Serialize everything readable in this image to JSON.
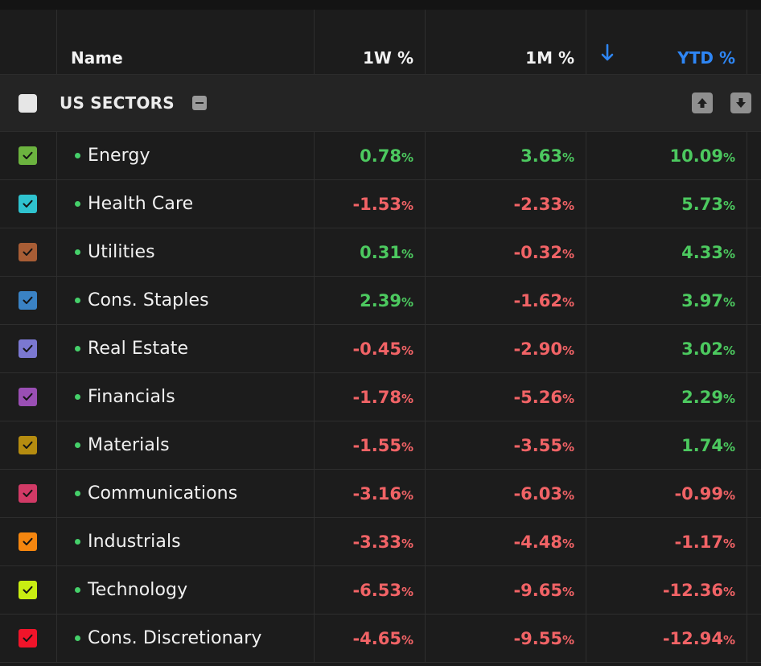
{
  "header": {
    "name": "Name",
    "w1": "1W %",
    "m1": "1M %",
    "ytd": "YTD %",
    "sort_icon": "sort-descending-arrow-icon"
  },
  "group": {
    "title": "US SECTORS",
    "collapse_icon": "minus-icon",
    "move_up_icon": "arrow-up-icon",
    "move_down_icon": "arrow-down-icon"
  },
  "colors": {
    "positive": "#4cc95f",
    "negative": "#f16366",
    "accent": "#2e86f5"
  },
  "rows": [
    {
      "name": "Energy",
      "color": "#6cb33f",
      "checked": true,
      "w1": "0.78",
      "m1": "3.63",
      "ytd": "10.09"
    },
    {
      "name": "Health Care",
      "color": "#2fc3cf",
      "checked": true,
      "w1": "-1.53",
      "m1": "-2.33",
      "ytd": "5.73"
    },
    {
      "name": "Utilities",
      "color": "#a85d35",
      "checked": true,
      "w1": "0.31",
      "m1": "-0.32",
      "ytd": "4.33"
    },
    {
      "name": "Cons. Staples",
      "color": "#3a82c4",
      "checked": true,
      "w1": "2.39",
      "m1": "-1.62",
      "ytd": "3.97"
    },
    {
      "name": "Real Estate",
      "color": "#7b78d1",
      "checked": true,
      "w1": "-0.45",
      "m1": "-2.90",
      "ytd": "3.02"
    },
    {
      "name": "Financials",
      "color": "#9a4fb4",
      "checked": true,
      "w1": "-1.78",
      "m1": "-5.26",
      "ytd": "2.29"
    },
    {
      "name": "Materials",
      "color": "#b58c10",
      "checked": true,
      "w1": "-1.55",
      "m1": "-3.55",
      "ytd": "1.74"
    },
    {
      "name": "Communications",
      "color": "#d13a66",
      "checked": true,
      "w1": "-3.16",
      "m1": "-6.03",
      "ytd": "-0.99"
    },
    {
      "name": "Industrials",
      "color": "#f5860f",
      "checked": true,
      "w1": "-3.33",
      "m1": "-4.48",
      "ytd": "-1.17"
    },
    {
      "name": "Technology",
      "color": "#c9ee12",
      "checked": true,
      "w1": "-6.53",
      "m1": "-9.65",
      "ytd": "-12.36"
    },
    {
      "name": "Cons. Discretionary",
      "color": "#f0142a",
      "checked": true,
      "w1": "-4.65",
      "m1": "-9.55",
      "ytd": "-12.94"
    }
  ],
  "unit_suffix": "%"
}
